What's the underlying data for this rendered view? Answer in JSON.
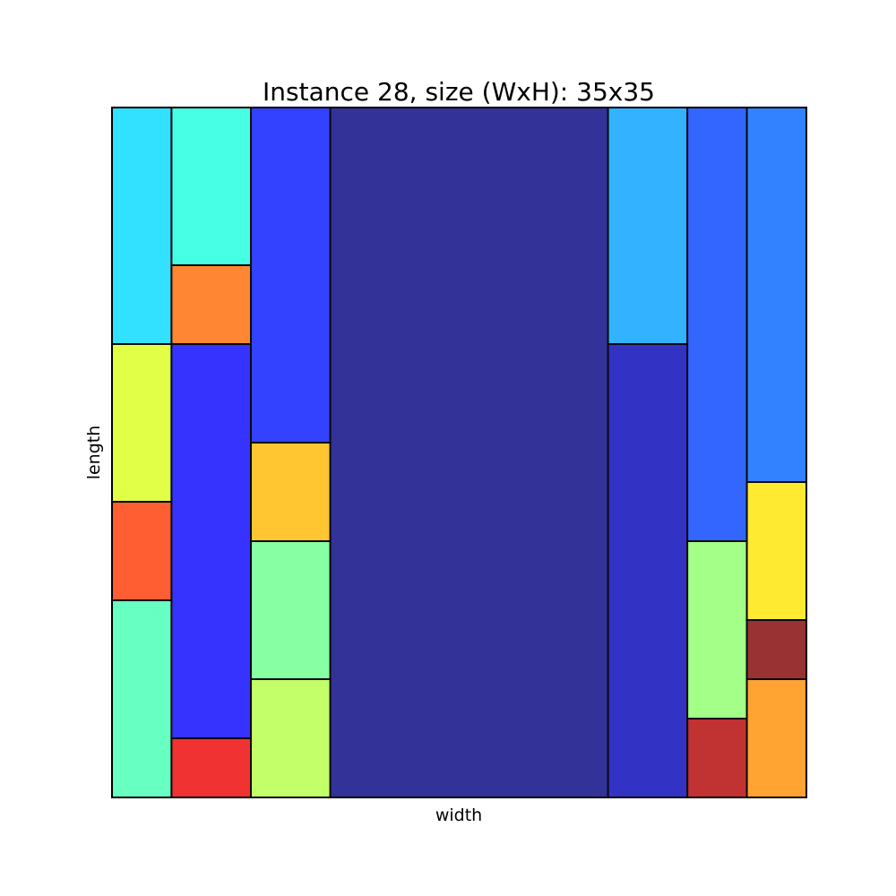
{
  "chart_data": {
    "type": "rectangle-packing",
    "title": "Instance 28, size (WxH): 35x35",
    "xlabel": "width",
    "ylabel": "length",
    "xlim": [
      0,
      35
    ],
    "ylim": [
      0,
      35
    ],
    "grid": false,
    "rectangles": [
      {
        "x": 0,
        "y": 23,
        "w": 3,
        "h": 12,
        "color": "#00d9ff"
      },
      {
        "x": 0,
        "y": 15,
        "w": 3,
        "h": 8,
        "color": "#daff1a"
      },
      {
        "x": 0,
        "y": 10,
        "w": 3,
        "h": 5,
        "color": "#ff3600"
      },
      {
        "x": 0,
        "y": 0,
        "w": 3,
        "h": 10,
        "color": "#43ffb3"
      },
      {
        "x": 3,
        "y": 27,
        "w": 4,
        "h": 8,
        "color": "#1affdf"
      },
      {
        "x": 3,
        "y": 23,
        "w": 4,
        "h": 4,
        "color": "#ff6800"
      },
      {
        "x": 3,
        "y": 3,
        "w": 4,
        "h": 20,
        "color": "#0400ff"
      },
      {
        "x": 3,
        "y": 0,
        "w": 4,
        "h": 3,
        "color": "#ee0000"
      },
      {
        "x": 7,
        "y": 18,
        "w": 4,
        "h": 17,
        "color": "#0014ff"
      },
      {
        "x": 7,
        "y": 13,
        "w": 4,
        "h": 5,
        "color": "#ffb800"
      },
      {
        "x": 7,
        "y": 6,
        "w": 4,
        "h": 7,
        "color": "#6aff8d"
      },
      {
        "x": 7,
        "y": 0,
        "w": 4,
        "h": 6,
        "color": "#b3ff43"
      },
      {
        "x": 11,
        "y": 0,
        "w": 14,
        "h": 35,
        "color": "#000080"
      },
      {
        "x": 25,
        "y": 23,
        "w": 4,
        "h": 12,
        "color": "#00a0ff"
      },
      {
        "x": 25,
        "y": 0,
        "w": 4,
        "h": 23,
        "color": "#0000b6"
      },
      {
        "x": 29,
        "y": 13,
        "w": 3,
        "h": 22,
        "color": "#0040ff"
      },
      {
        "x": 29,
        "y": 4,
        "w": 3,
        "h": 9,
        "color": "#8dff6a"
      },
      {
        "x": 29,
        "y": 0,
        "w": 3,
        "h": 4,
        "color": "#b20000"
      },
      {
        "x": 32,
        "y": 16,
        "w": 3,
        "h": 19,
        "color": "#0064ff"
      },
      {
        "x": 32,
        "y": 9,
        "w": 3,
        "h": 7,
        "color": "#ffe600"
      },
      {
        "x": 32,
        "y": 6,
        "w": 3,
        "h": 3,
        "color": "#800000"
      },
      {
        "x": 32,
        "y": 0,
        "w": 3,
        "h": 6,
        "color": "#ff8d00"
      }
    ]
  }
}
